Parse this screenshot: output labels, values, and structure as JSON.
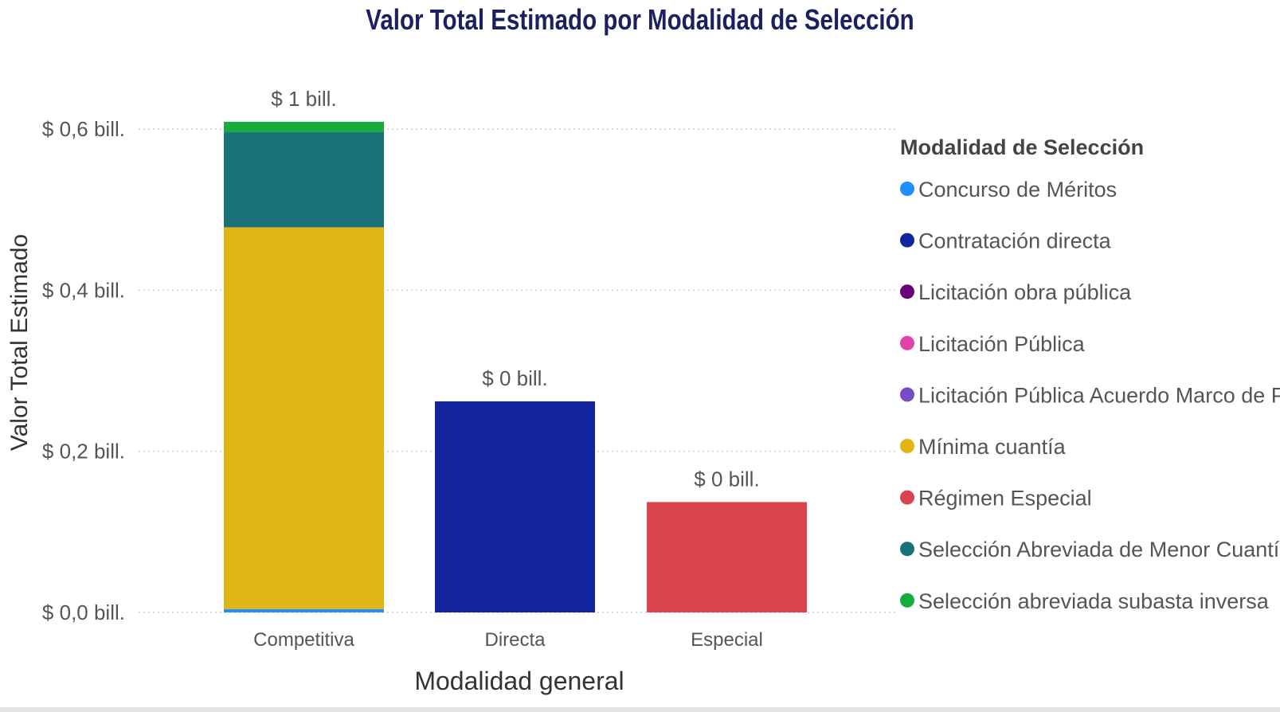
{
  "chart_data": {
    "type": "bar",
    "stacked": true,
    "title": "Valor Total Estimado por Modalidad de Selección",
    "xlabel": "Modalidad general",
    "ylabel": "Valor Total Estimado",
    "ylim": [
      0,
      0.6
    ],
    "yticks": [
      0,
      0.2,
      0.4,
      0.6
    ],
    "ytick_labels": [
      "$ 0,0 bill.",
      "$ 0,2 bill.",
      "$ 0,4 bill.",
      "$ 0,6 bill."
    ],
    "grid": true,
    "categories": [
      "Competitiva",
      "Directa",
      "Especial"
    ],
    "total_labels": [
      "$ 1 bill.",
      "$ 0 bill.",
      "$ 0 bill."
    ],
    "legend_title": "Modalidad de Selección",
    "legend_position": "right",
    "series": [
      {
        "name": "Concurso de Méritos",
        "color": "#1e90ff",
        "values": [
          0.004,
          0,
          0
        ]
      },
      {
        "name": "Contratación directa",
        "color": "#12239e",
        "values": [
          0,
          0.262,
          0
        ]
      },
      {
        "name": "Licitación obra pública",
        "color": "#6b007b",
        "values": [
          0,
          0,
          0
        ]
      },
      {
        "name": "Licitación Pública",
        "color": "#e044a7",
        "values": [
          0,
          0,
          0
        ]
      },
      {
        "name": "Licitación Pública Acuerdo Marco de P...",
        "color": "#744ec2",
        "values": [
          0,
          0,
          0
        ]
      },
      {
        "name": "Mínima cuantía",
        "color": "#e0b516",
        "values": [
          0.474,
          0,
          0
        ]
      },
      {
        "name": "Régimen Especial",
        "color": "#d9444f",
        "values": [
          0,
          0,
          0.137
        ]
      },
      {
        "name": "Selección Abreviada de Menor Cuantía",
        "color": "#197278",
        "values": [
          0.118,
          0,
          0
        ]
      },
      {
        "name": "Selección abreviada subasta inversa",
        "color": "#1aab40",
        "values": [
          0.013,
          0,
          0
        ]
      }
    ]
  }
}
